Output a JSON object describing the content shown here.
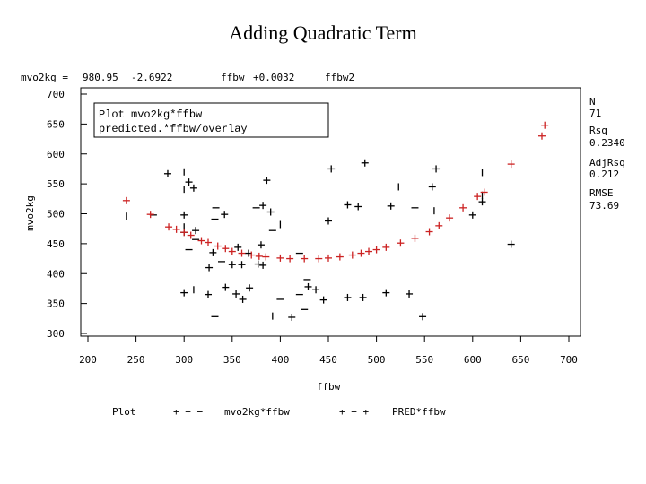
{
  "title": "Adding Quadratic Term",
  "equation": {
    "lhs": "mvo2kg =",
    "intercept": "980.95",
    "coef1": "-2.6922",
    "term1": "ffbw",
    "coef2": "+0.0032",
    "term2": "ffbw2"
  },
  "note": {
    "line1": "Plot mvo2kg*ffbw",
    "line2": "predicted.*ffbw/overlay"
  },
  "stats": [
    {
      "label": "N",
      "value": "71"
    },
    {
      "label": "Rsq",
      "value": "0.2340"
    },
    {
      "label": "AdjRsq",
      "value": "0.212"
    },
    {
      "label": "RMSE",
      "value": "73.69"
    }
  ],
  "legend": {
    "prefix": "Plot",
    "observed_symbols": "+ + −",
    "observed_label": "mvo2kg*ffbw",
    "predicted_symbols": "+ + +",
    "predicted_label": "PRED*ffbw"
  },
  "colors": {
    "observed": "#000000",
    "predicted": "#cc2222"
  },
  "chart_data": {
    "type": "scatter",
    "title": "Adding Quadratic Term",
    "xlabel": "ffbw",
    "ylabel": "mvo2kg",
    "xlim": [
      200,
      700
    ],
    "ylim": [
      300,
      700
    ],
    "xticks": [
      200,
      250,
      300,
      350,
      400,
      450,
      500,
      550,
      600,
      650,
      700
    ],
    "yticks": [
      300,
      350,
      400,
      450,
      500,
      550,
      600,
      650,
      700
    ],
    "grid": false,
    "legend_position": "bottom",
    "series": [
      {
        "name": "mvo2kg*ffbw",
        "marker": "mixed",
        "points": [
          [
            283,
            567,
            "+"
          ],
          [
            300,
            570,
            "|"
          ],
          [
            305,
            553,
            "+"
          ],
          [
            310,
            543,
            "+"
          ],
          [
            300,
            541,
            "|"
          ],
          [
            386,
            556,
            "+"
          ],
          [
            453,
            575,
            "+"
          ],
          [
            488,
            585,
            "+"
          ],
          [
            562,
            575,
            "+"
          ],
          [
            610,
            569,
            "|"
          ],
          [
            240,
            496,
            "|"
          ],
          [
            268,
            498,
            "-"
          ],
          [
            300,
            498,
            "+"
          ],
          [
            333,
            510,
            "-"
          ],
          [
            342,
            499,
            "+"
          ],
          [
            332,
            491,
            "-"
          ],
          [
            300,
            478,
            "|"
          ],
          [
            312,
            472,
            "+"
          ],
          [
            300,
            469,
            "+"
          ],
          [
            382,
            514,
            "+"
          ],
          [
            375,
            510,
            "-"
          ],
          [
            390,
            503,
            "+"
          ],
          [
            400,
            482,
            "|"
          ],
          [
            392,
            472,
            "-"
          ],
          [
            470,
            515,
            "+"
          ],
          [
            481,
            512,
            "+"
          ],
          [
            515,
            513,
            "+"
          ],
          [
            523,
            545,
            "|"
          ],
          [
            540,
            510,
            "-"
          ],
          [
            558,
            545,
            "+"
          ],
          [
            450,
            488,
            "+"
          ],
          [
            312,
            457,
            "-"
          ],
          [
            305,
            440,
            "-"
          ],
          [
            330,
            435,
            "+"
          ],
          [
            326,
            410,
            "+"
          ],
          [
            339,
            420,
            "-"
          ],
          [
            356,
            444,
            "+"
          ],
          [
            367,
            434,
            "+"
          ],
          [
            350,
            415,
            "+"
          ],
          [
            360,
            415,
            "+"
          ],
          [
            377,
            416,
            "+"
          ],
          [
            382,
            414,
            "+"
          ],
          [
            420,
            434,
            "-"
          ],
          [
            300,
            368,
            "+"
          ],
          [
            310,
            373,
            "|"
          ],
          [
            325,
            365,
            "+"
          ],
          [
            343,
            377,
            "+"
          ],
          [
            354,
            366,
            "+"
          ],
          [
            361,
            357,
            "+"
          ],
          [
            368,
            376,
            "+"
          ],
          [
            400,
            357,
            "-"
          ],
          [
            420,
            365,
            "-"
          ],
          [
            429,
            378,
            "+"
          ],
          [
            428,
            390,
            "-"
          ],
          [
            437,
            373,
            "+"
          ],
          [
            445,
            356,
            "+"
          ],
          [
            412,
            327,
            "+"
          ],
          [
            425,
            340,
            "-"
          ],
          [
            392,
            329,
            "|"
          ],
          [
            332,
            328,
            "-"
          ],
          [
            600,
            498,
            "+"
          ],
          [
            610,
            531,
            "|"
          ],
          [
            610,
            520,
            "+"
          ],
          [
            640,
            449,
            "+"
          ],
          [
            560,
            505,
            "|"
          ],
          [
            380,
            448,
            "+"
          ],
          [
            486,
            360,
            "+"
          ],
          [
            510,
            368,
            "+"
          ],
          [
            534,
            366,
            "+"
          ],
          [
            548,
            328,
            "+"
          ],
          [
            470,
            360,
            "+"
          ]
        ]
      },
      {
        "name": "PRED*ffbw",
        "marker": "+",
        "points": [
          [
            240,
            522
          ],
          [
            265,
            499
          ],
          [
            284,
            478
          ],
          [
            292,
            474
          ],
          [
            300,
            469
          ],
          [
            307,
            464
          ],
          [
            318,
            455
          ],
          [
            325,
            452
          ],
          [
            335,
            446
          ],
          [
            343,
            442
          ],
          [
            350,
            437
          ],
          [
            360,
            434
          ],
          [
            370,
            431
          ],
          [
            378,
            429
          ],
          [
            385,
            428
          ],
          [
            400,
            426
          ],
          [
            410,
            425
          ],
          [
            425,
            425
          ],
          [
            440,
            425
          ],
          [
            450,
            426
          ],
          [
            462,
            428
          ],
          [
            475,
            431
          ],
          [
            484,
            434
          ],
          [
            492,
            437
          ],
          [
            500,
            440
          ],
          [
            510,
            444
          ],
          [
            525,
            451
          ],
          [
            540,
            459
          ],
          [
            555,
            470
          ],
          [
            565,
            480
          ],
          [
            576,
            493
          ],
          [
            590,
            510
          ],
          [
            605,
            529
          ],
          [
            612,
            536
          ],
          [
            640,
            583
          ],
          [
            672,
            630
          ],
          [
            675,
            648
          ]
        ]
      }
    ]
  }
}
